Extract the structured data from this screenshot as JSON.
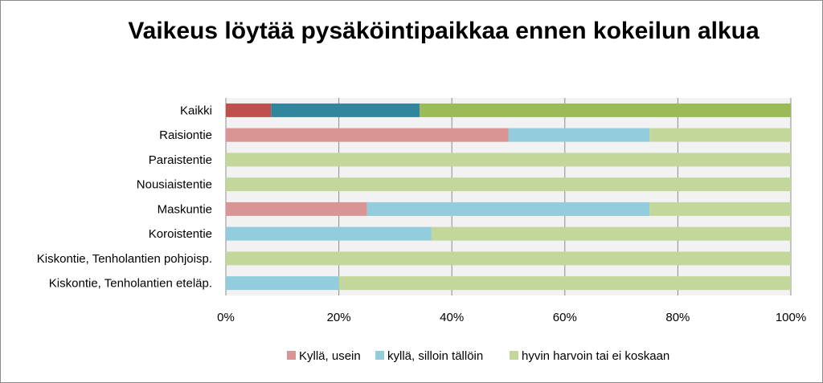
{
  "chart_data": {
    "type": "bar",
    "orientation": "horizontal",
    "stacked": "percent",
    "title": "Vaikeus löytää pysäköintipaikkaa ennen kokeilun alkua",
    "categories": [
      "Kaikki",
      "Raisiontie",
      "Paraistentie",
      "Nousiaistentie",
      "Maskuntie",
      "Koroistentie",
      "Kiskontie, Tenholantien pohjoisp.",
      "Kiskontie, Tenholantien eteläp."
    ],
    "series": [
      {
        "name": "Kyllä, usein",
        "color": "#d99594",
        "values": [
          8,
          50,
          0,
          0,
          25,
          0,
          0,
          0
        ]
      },
      {
        "name": "kyllä, silloin tällöin",
        "color": "#93cddd",
        "values": [
          26.3,
          25,
          0,
          0,
          50,
          36.4,
          0,
          20
        ]
      },
      {
        "name": "hyvin harvoin tai ei koskaan",
        "color": "#c4d79b",
        "values": [
          65.7,
          25,
          100,
          100,
          25,
          63.6,
          100,
          80
        ]
      }
    ],
    "highlight": {
      "category": "Kaikki",
      "colors": [
        "#c0504d",
        "#31859c",
        "#9bbb59"
      ]
    },
    "xlim": [
      0,
      100
    ],
    "xticks": [
      "0%",
      "20%",
      "40%",
      "60%",
      "80%",
      "100%"
    ],
    "legend_position": "bottom",
    "grid": true
  }
}
